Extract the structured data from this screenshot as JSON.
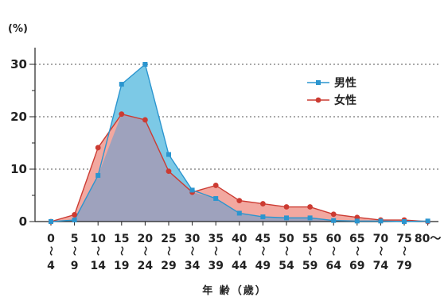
{
  "chart_data": {
    "type": "area",
    "y_unit_label": "(%)",
    "xlabel": "年 齢（歳）",
    "ylim": [
      0,
      35
    ],
    "yticks": [
      0,
      10,
      20,
      30
    ],
    "grid": "horizontal-dotted",
    "legend_position": "right",
    "tilde_char": "〜",
    "categories": [
      {
        "top": "0",
        "bottom": "4"
      },
      {
        "top": "5",
        "bottom": "9"
      },
      {
        "top": "10",
        "bottom": "14"
      },
      {
        "top": "15",
        "bottom": "19"
      },
      {
        "top": "20",
        "bottom": "24"
      },
      {
        "top": "25",
        "bottom": "29"
      },
      {
        "top": "30",
        "bottom": "34"
      },
      {
        "top": "35",
        "bottom": "39"
      },
      {
        "top": "40",
        "bottom": "44"
      },
      {
        "top": "45",
        "bottom": "49"
      },
      {
        "top": "50",
        "bottom": "54"
      },
      {
        "top": "55",
        "bottom": "59"
      },
      {
        "top": "60",
        "bottom": "64"
      },
      {
        "top": "65",
        "bottom": "69"
      },
      {
        "top": "70",
        "bottom": "74"
      },
      {
        "top": "75",
        "bottom": "79"
      },
      {
        "top": "80〜",
        "bottom": ""
      }
    ],
    "series": [
      {
        "name": "男性",
        "marker": "square",
        "line_color": "#2b95cf",
        "fill_color": "#7cc9e6",
        "values": [
          0,
          0.3,
          8.8,
          26.2,
          30.0,
          12.8,
          6.0,
          4.4,
          1.6,
          0.9,
          0.7,
          0.7,
          0.2,
          0.1,
          0.1,
          0,
          0.1
        ]
      },
      {
        "name": "女性",
        "marker": "circle",
        "line_color": "#cc3b32",
        "fill_color": "#f2a8a0",
        "values": [
          0,
          1.3,
          14.1,
          20.5,
          19.4,
          9.6,
          5.6,
          6.9,
          4.0,
          3.4,
          2.8,
          2.8,
          1.4,
          0.8,
          0.3,
          0.3,
          0
        ]
      }
    ],
    "overlap_fill_color": "#9ea2bd"
  }
}
